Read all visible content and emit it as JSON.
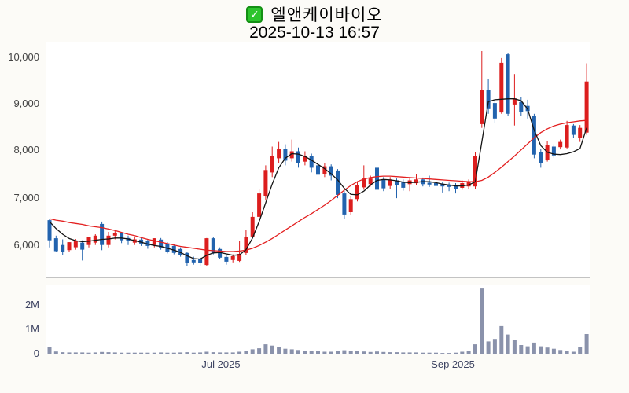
{
  "header": {
    "title": "엘앤케이바이오",
    "datetime": "2025-10-13 16:57",
    "checkbox_glyph": "✓"
  },
  "price_axis": {
    "labels": [
      "10,000",
      "9,000",
      "8,000",
      "7,000",
      "6,000"
    ],
    "values": [
      10000,
      9000,
      8000,
      7000,
      6000
    ]
  },
  "volume_axis": {
    "labels": [
      "2M",
      "1M",
      "0"
    ],
    "values": [
      2000000,
      1000000,
      0
    ]
  },
  "x_axis": {
    "labels": [
      "Jul 2025",
      "Sep 2025"
    ]
  },
  "colors": {
    "up": "#dc1e1e",
    "down": "#2263ae",
    "volume": "#8a92ab",
    "ma_fast": "#141414",
    "ma_slow": "#e32020",
    "axis": "#b5b5b5",
    "vol_axis": "#8f96a8",
    "plot_bg": "#ffffff",
    "page_bg": "#fcfbf7",
    "checkbox_green": "#2cc42c"
  },
  "chart_data": {
    "type": "candlestick",
    "title": "엘앤케이바이오",
    "timestamp": "2025-10-13 16:57",
    "legend_position": "none",
    "grid": false,
    "price_axis_ticks": [
      6000,
      7000,
      8000,
      9000,
      10000
    ],
    "price_range_shown": [
      5300,
      10290
    ],
    "volume_axis_ticks": [
      0,
      1000000,
      2000000
    ],
    "x_tick_labels": [
      "Jul 2025",
      "Sep 2025"
    ],
    "overlay_lines": [
      "ma_fast (black)",
      "ma_slow (red)"
    ],
    "candles_ohlc": [
      [
        6530,
        6560,
        5950,
        6100
      ],
      [
        6145,
        6200,
        5860,
        5870
      ],
      [
        6000,
        6120,
        5780,
        5850
      ],
      [
        5890,
        6060,
        5850,
        6060
      ],
      [
        5950,
        6130,
        5900,
        6080
      ],
      [
        6050,
        6100,
        5670,
        5900
      ],
      [
        6000,
        6180,
        5950,
        6180
      ],
      [
        6050,
        6230,
        6000,
        6200
      ],
      [
        6450,
        6500,
        5890,
        6000
      ],
      [
        6000,
        6280,
        5950,
        6200
      ],
      [
        6200,
        6300,
        6120,
        6250
      ],
      [
        6250,
        6280,
        6040,
        6100
      ],
      [
        6150,
        6200,
        6000,
        6080
      ],
      [
        6050,
        6180,
        6000,
        6120
      ],
      [
        6115,
        6160,
        5980,
        6030
      ],
      [
        6080,
        6120,
        5920,
        5980
      ],
      [
        6000,
        6145,
        5950,
        6145
      ],
      [
        6115,
        6150,
        5900,
        5945
      ],
      [
        6030,
        6060,
        5820,
        5860
      ],
      [
        5980,
        6010,
        5800,
        5830
      ],
      [
        5915,
        5950,
        5750,
        5780
      ],
      [
        5830,
        5860,
        5550,
        5610
      ],
      [
        5680,
        5750,
        5580,
        5630
      ],
      [
        5700,
        5740,
        5560,
        5620
      ],
      [
        5575,
        6150,
        5550,
        6145
      ],
      [
        6145,
        6180,
        5800,
        5830
      ],
      [
        5915,
        5950,
        5700,
        5730
      ],
      [
        5745,
        5790,
        5580,
        5645
      ],
      [
        5680,
        5800,
        5630,
        5760
      ],
      [
        5660,
        6080,
        5640,
        5810
      ],
      [
        5830,
        6320,
        5780,
        6180
      ],
      [
        6180,
        6700,
        6150,
        6600
      ],
      [
        6600,
        7200,
        6500,
        7100
      ],
      [
        7050,
        7700,
        6950,
        7600
      ],
      [
        7550,
        8100,
        7450,
        7900
      ],
      [
        7850,
        8200,
        7750,
        8050
      ],
      [
        8050,
        8150,
        7700,
        7800
      ],
      [
        7850,
        8250,
        7780,
        8000
      ],
      [
        8000,
        8080,
        7650,
        7750
      ],
      [
        7780,
        8000,
        7700,
        7900
      ],
      [
        7900,
        7950,
        7550,
        7650
      ],
      [
        7700,
        7780,
        7420,
        7500
      ],
      [
        7520,
        7750,
        7450,
        7680
      ],
      [
        7680,
        7720,
        7380,
        7480
      ],
      [
        7590,
        7620,
        7000,
        7070
      ],
      [
        7100,
        7150,
        6550,
        6650
      ],
      [
        6700,
        7050,
        6650,
        6980
      ],
      [
        6980,
        7360,
        6930,
        7280
      ],
      [
        7230,
        7700,
        7180,
        7420
      ],
      [
        7300,
        7480,
        7250,
        7420
      ],
      [
        7650,
        7730,
        7120,
        7180
      ],
      [
        7400,
        7450,
        7150,
        7210
      ],
      [
        7260,
        7450,
        7200,
        7400
      ],
      [
        7380,
        7420,
        7000,
        7280
      ],
      [
        7350,
        7400,
        7160,
        7220
      ],
      [
        7300,
        7420,
        7150,
        7380
      ],
      [
        7320,
        7520,
        7280,
        7400
      ],
      [
        7400,
        7440,
        7250,
        7300
      ],
      [
        7330,
        7480,
        7240,
        7290
      ],
      [
        7320,
        7380,
        7200,
        7260
      ],
      [
        7300,
        7340,
        7120,
        7250
      ],
      [
        7290,
        7330,
        7150,
        7240
      ],
      [
        7280,
        7320,
        7100,
        7200
      ],
      [
        7220,
        7380,
        7180,
        7320
      ],
      [
        7250,
        7400,
        7200,
        7350
      ],
      [
        7250,
        7980,
        7200,
        7900
      ],
      [
        8580,
        10140,
        8500,
        9300
      ],
      [
        9300,
        9550,
        8800,
        8900
      ],
      [
        9030,
        9100,
        8600,
        8700
      ],
      [
        8830,
        9990,
        8800,
        9890
      ],
      [
        10070,
        10100,
        8750,
        8800
      ],
      [
        9000,
        9650,
        8550,
        9130
      ],
      [
        9050,
        9150,
        8750,
        8830
      ],
      [
        8970,
        9100,
        8700,
        8860
      ],
      [
        8760,
        8800,
        7850,
        7930
      ],
      [
        7990,
        8050,
        7650,
        7740
      ],
      [
        7820,
        8210,
        7780,
        8130
      ],
      [
        8100,
        8150,
        7860,
        7910
      ],
      [
        8090,
        8250,
        8040,
        8200
      ],
      [
        8080,
        8650,
        8060,
        8560
      ],
      [
        8550,
        8580,
        8280,
        8350
      ],
      [
        8280,
        8560,
        8200,
        8500
      ],
      [
        8400,
        9880,
        8350,
        9490
      ]
    ],
    "volume_millions": [
      0.27,
      0.09,
      0.06,
      0.05,
      0.05,
      0.05,
      0.04,
      0.05,
      0.07,
      0.06,
      0.05,
      0.04,
      0.04,
      0.04,
      0.04,
      0.04,
      0.04,
      0.05,
      0.04,
      0.04,
      0.05,
      0.06,
      0.04,
      0.05,
      0.08,
      0.06,
      0.05,
      0.05,
      0.05,
      0.08,
      0.12,
      0.18,
      0.22,
      0.38,
      0.33,
      0.28,
      0.2,
      0.18,
      0.15,
      0.12,
      0.1,
      0.1,
      0.08,
      0.08,
      0.12,
      0.14,
      0.1,
      0.1,
      0.09,
      0.07,
      0.09,
      0.07,
      0.06,
      0.06,
      0.05,
      0.05,
      0.05,
      0.04,
      0.04,
      0.04,
      0.03,
      0.03,
      0.04,
      0.08,
      0.1,
      0.38,
      2.65,
      0.5,
      0.6,
      1.12,
      0.78,
      0.56,
      0.35,
      0.3,
      0.45,
      0.3,
      0.25,
      0.2,
      0.15,
      0.1,
      0.08,
      0.27,
      0.8
    ],
    "ma_fast": [
      6500,
      6350,
      6230,
      6140,
      6090,
      6070,
      6080,
      6100,
      6120,
      6130,
      6150,
      6150,
      6130,
      6090,
      6060,
      6020,
      5990,
      5970,
      5930,
      5890,
      5840,
      5770,
      5710,
      5700,
      5780,
      5830,
      5840,
      5810,
      5780,
      5790,
      5900,
      6150,
      6500,
      6900,
      7300,
      7650,
      7850,
      7950,
      7940,
      7890,
      7810,
      7720,
      7630,
      7520,
      7390,
      7210,
      7080,
      7070,
      7150,
      7280,
      7380,
      7400,
      7390,
      7370,
      7340,
      7330,
      7340,
      7350,
      7350,
      7330,
      7300,
      7280,
      7260,
      7260,
      7280,
      7350,
      8200,
      9060,
      9100,
      9110,
      9120,
      9120,
      9080,
      8900,
      8450,
      8120,
      7980,
      7940,
      7930,
      7950,
      7990,
      8060,
      8500
    ],
    "ma_slow": [
      6560,
      6530,
      6510,
      6480,
      6460,
      6440,
      6410,
      6390,
      6370,
      6340,
      6310,
      6270,
      6230,
      6200,
      6160,
      6120,
      6090,
      6060,
      6030,
      6000,
      5970,
      5950,
      5930,
      5910,
      5890,
      5880,
      5870,
      5860,
      5860,
      5870,
      5890,
      5930,
      5990,
      6060,
      6140,
      6230,
      6320,
      6410,
      6500,
      6590,
      6670,
      6760,
      6850,
      6950,
      7060,
      7170,
      7270,
      7350,
      7410,
      7440,
      7460,
      7470,
      7470,
      7460,
      7450,
      7440,
      7430,
      7420,
      7410,
      7400,
      7390,
      7380,
      7370,
      7360,
      7350,
      7350,
      7380,
      7450,
      7550,
      7660,
      7780,
      7900,
      8030,
      8160,
      8290,
      8400,
      8480,
      8540,
      8580,
      8610,
      8630,
      8650,
      8660
    ]
  }
}
